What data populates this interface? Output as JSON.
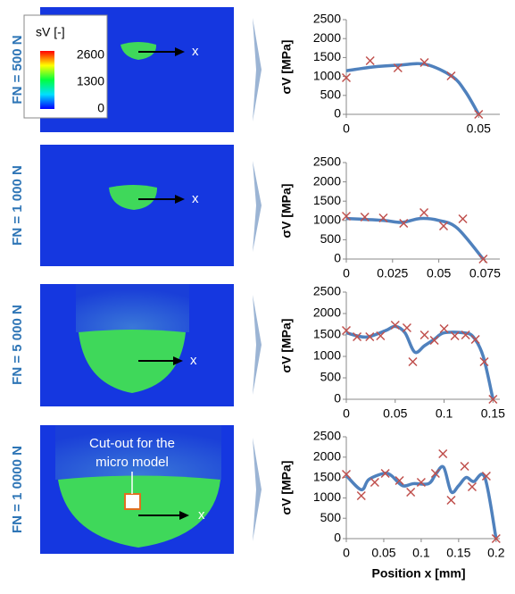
{
  "images": [
    {
      "label": "FN = 500 N",
      "axis_label": "x"
    },
    {
      "label": "FN = 1 000 N",
      "axis_label": "x"
    },
    {
      "label": "FN = 5 000 N",
      "axis_label": "x"
    },
    {
      "label": "FN = 1 0000 N",
      "axis_label": "x",
      "annotation": [
        "Cut-out for the",
        "micro model"
      ]
    }
  ],
  "colorbar": {
    "title": "sV [-]",
    "lim": [
      0,
      2600
    ],
    "ticks": [
      2600,
      1300,
      0
    ]
  },
  "chart_data": [
    {
      "type": "line",
      "ylabel": "σV [MPa]",
      "xlim": [
        0,
        0.058
      ],
      "xticks": [
        0,
        0.05
      ],
      "ylim": [
        0,
        2500
      ],
      "yticks": [
        0,
        500,
        1000,
        1500,
        2000,
        2500
      ],
      "line": {
        "color": "#4f81bd",
        "x": [
          0,
          0.01,
          0.02,
          0.03,
          0.04,
          0.045,
          0.05
        ],
        "values": [
          1150,
          1250,
          1300,
          1320,
          1000,
          600,
          0
        ]
      },
      "points": {
        "color": "#c0504d",
        "x": [
          0,
          0.009,
          0.0195,
          0.0295,
          0.0396,
          0.05
        ],
        "values": [
          967,
          1415,
          1226,
          1368,
          1014,
          0
        ]
      }
    },
    {
      "type": "line",
      "ylabel": "σV [MPa]",
      "xlim": [
        0,
        0.083
      ],
      "xticks": [
        0,
        0.025,
        0.05,
        0.075
      ],
      "ylim": [
        0,
        2500
      ],
      "yticks": [
        0,
        500,
        1000,
        1500,
        2000,
        2500
      ],
      "line": {
        "color": "#4f81bd",
        "x": [
          0,
          0.02,
          0.03,
          0.04,
          0.05,
          0.06,
          0.074
        ],
        "values": [
          1050,
          1000,
          950,
          1050,
          1000,
          800,
          0
        ]
      },
      "points": {
        "color": "#c0504d",
        "x": [
          0,
          0.01,
          0.02,
          0.031,
          0.042,
          0.0526,
          0.063,
          0.074
        ],
        "values": [
          1111,
          1088,
          1065,
          926,
          1204,
          857,
          1042,
          0
        ]
      }
    },
    {
      "type": "line",
      "ylabel": "σV [MPa]",
      "xlim": [
        0,
        0.157
      ],
      "xticks": [
        0,
        0.05,
        0.1,
        0.15
      ],
      "ylim": [
        0,
        2500
      ],
      "yticks": [
        0,
        500,
        1000,
        1500,
        2000,
        2500
      ],
      "line": {
        "color": "#4f81bd",
        "x": [
          0,
          0.02,
          0.04,
          0.05,
          0.06,
          0.07,
          0.08,
          0.09,
          0.1,
          0.12,
          0.13,
          0.14,
          0.15
        ],
        "values": [
          1550,
          1450,
          1600,
          1700,
          1550,
          1100,
          1250,
          1400,
          1550,
          1550,
          1450,
          1000,
          0
        ]
      },
      "points": {
        "color": "#c0504d",
        "x": [
          0,
          0.011,
          0.024,
          0.035,
          0.05,
          0.062,
          0.068,
          0.08,
          0.09,
          0.1,
          0.111,
          0.122,
          0.132,
          0.141,
          0.15
        ],
        "values": [
          1604,
          1458,
          1458,
          1479,
          1729,
          1667,
          875,
          1500,
          1375,
          1646,
          1479,
          1500,
          1396,
          875,
          0
        ]
      }
    },
    {
      "type": "line",
      "ylabel": "σV [MPa]",
      "xlabel": "Position x [mm]",
      "xlim": [
        0,
        0.205
      ],
      "xticks": [
        0,
        0.05,
        0.1,
        0.15,
        0.2
      ],
      "ylim": [
        0,
        2500
      ],
      "yticks": [
        0,
        500,
        1000,
        1500,
        2000,
        2500
      ],
      "line": {
        "color": "#4f81bd",
        "x": [
          0,
          0.02,
          0.03,
          0.05,
          0.06,
          0.075,
          0.09,
          0.11,
          0.12,
          0.13,
          0.14,
          0.15,
          0.16,
          0.17,
          0.185,
          0.2
        ],
        "values": [
          1550,
          1200,
          1450,
          1600,
          1550,
          1300,
          1350,
          1350,
          1600,
          1750,
          1150,
          1300,
          1500,
          1400,
          1500,
          0
        ]
      },
      "points": {
        "color": "#c0504d",
        "x": [
          0,
          0.02,
          0.038,
          0.052,
          0.071,
          0.086,
          0.1,
          0.119,
          0.129,
          0.14,
          0.158,
          0.168,
          0.187,
          0.2
        ],
        "values": [
          1579,
          1053,
          1382,
          1601,
          1425,
          1140,
          1382,
          1601,
          2083,
          943,
          1776,
          1272,
          1535,
          0
        ]
      }
    }
  ]
}
